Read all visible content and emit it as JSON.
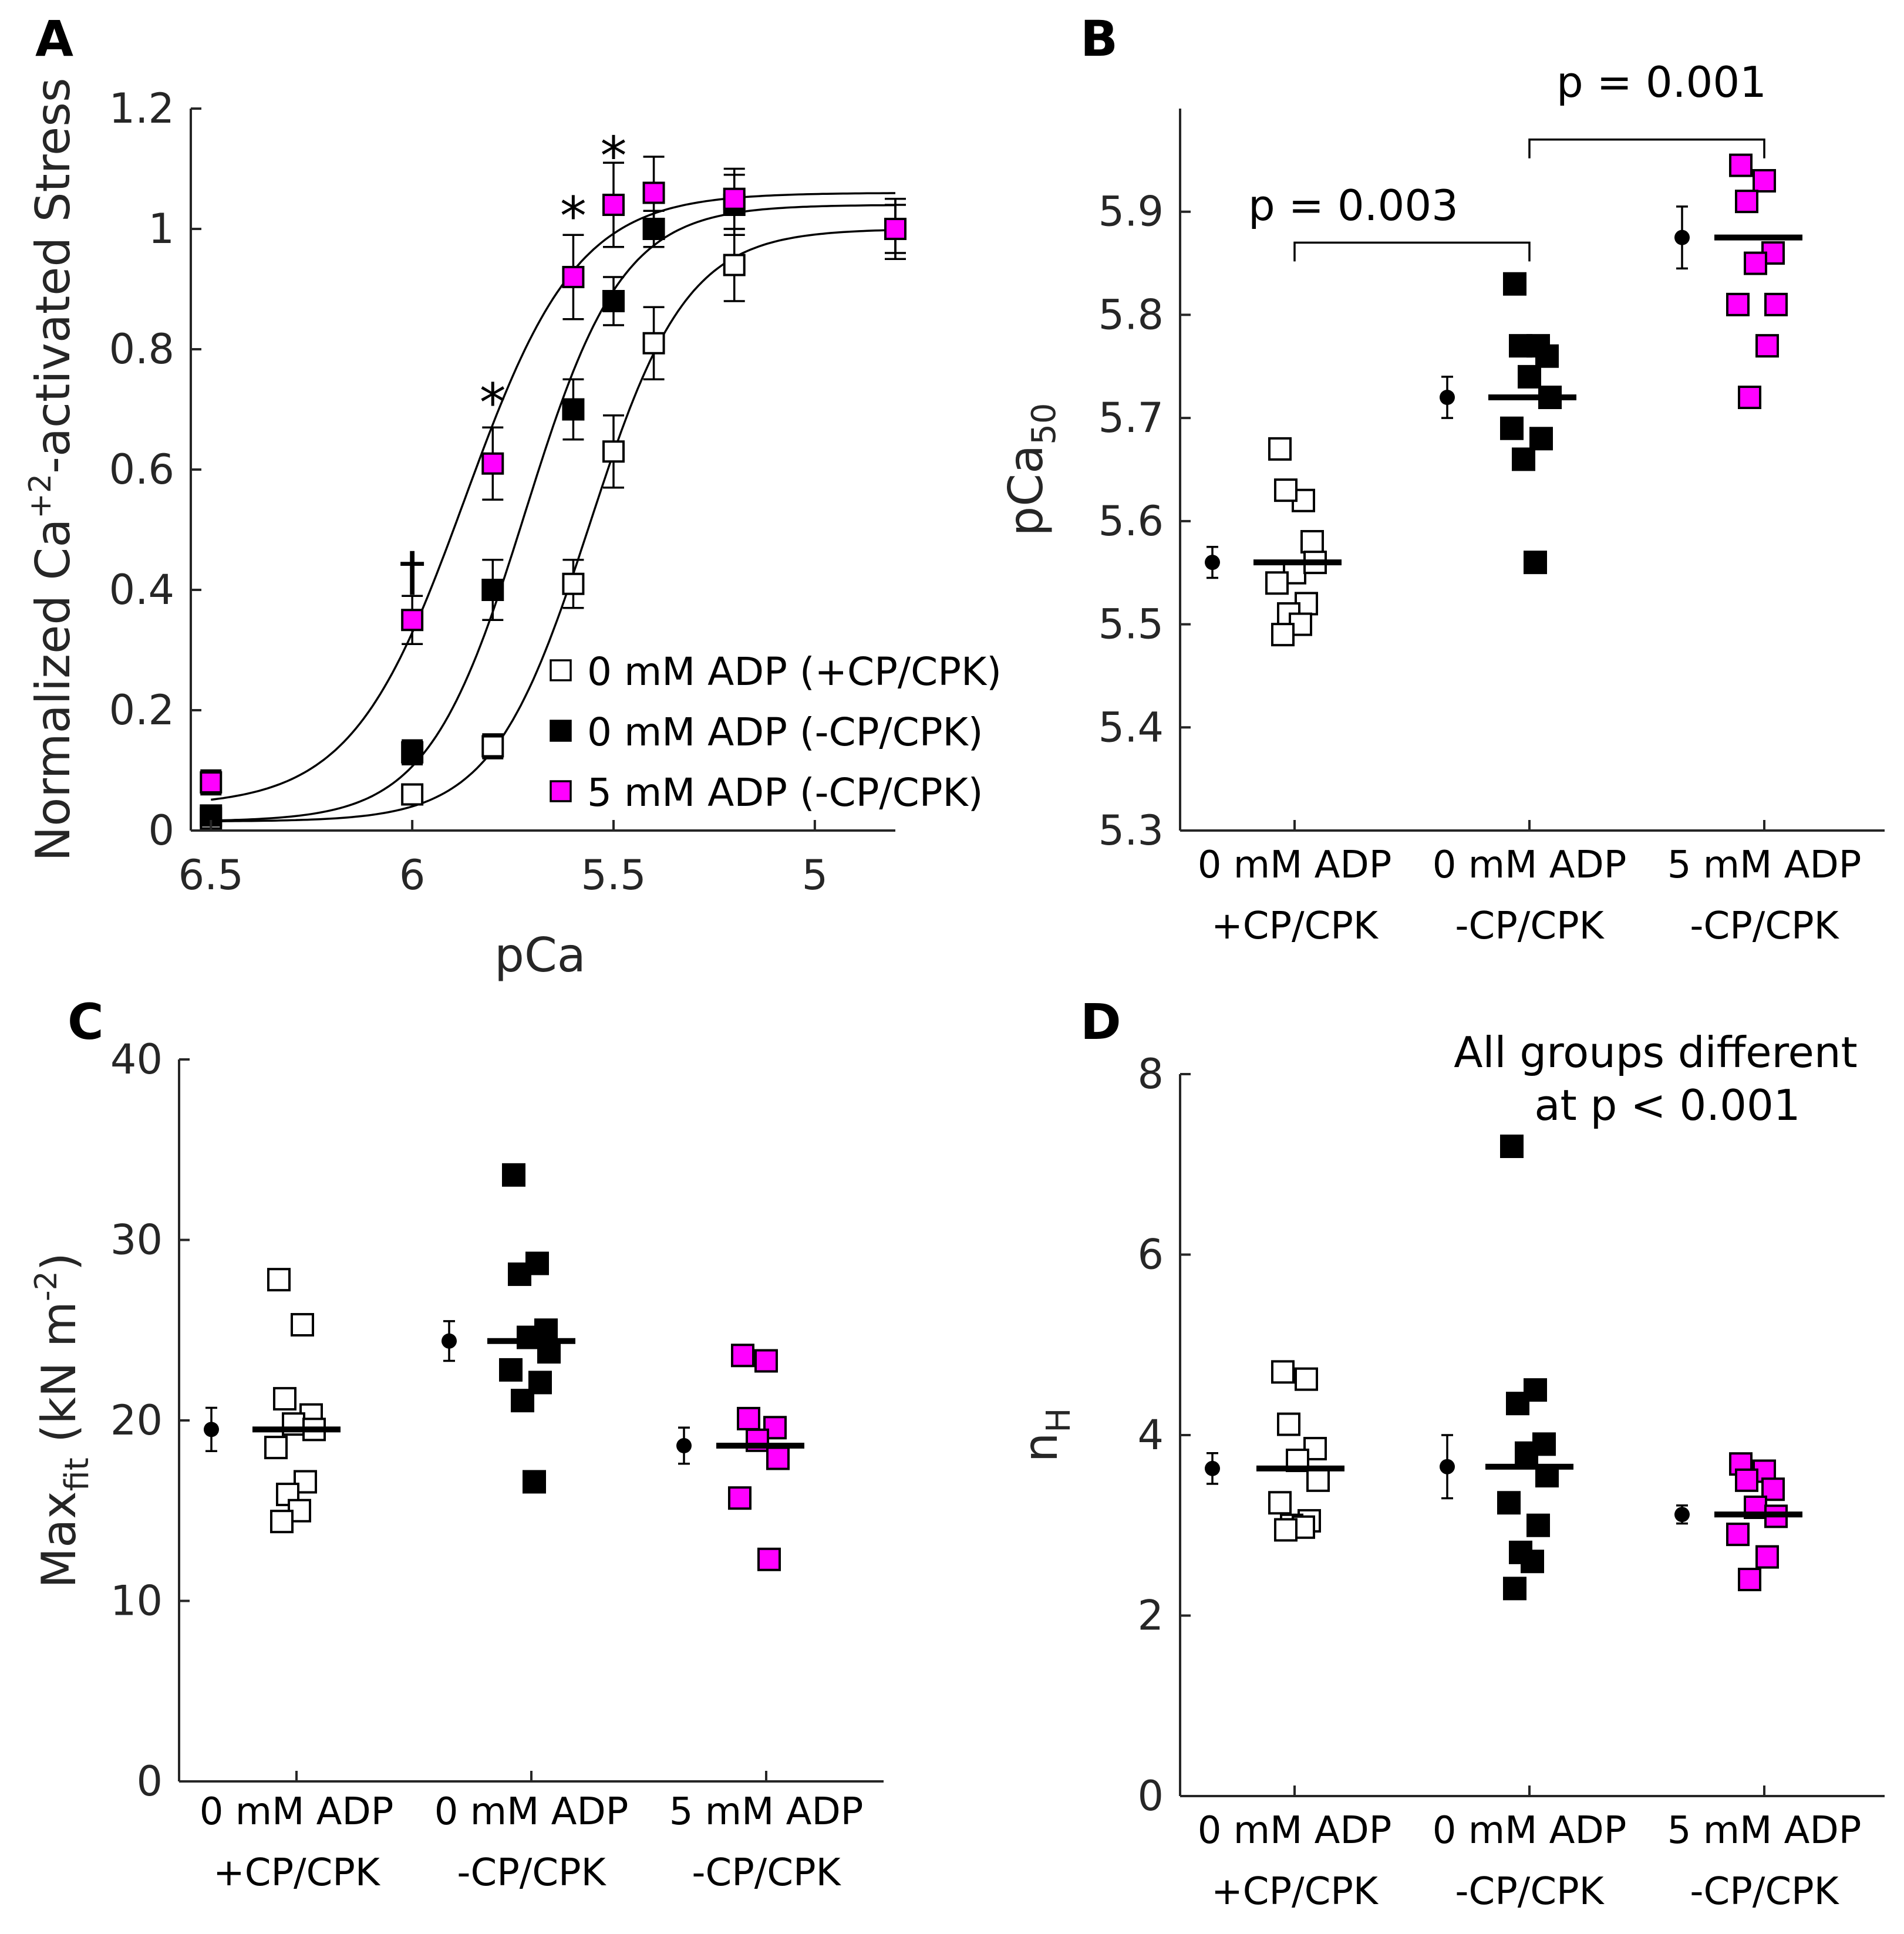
{
  "colors": {
    "open": "#ffffff",
    "black": "#000000",
    "magenta": "#ff00ff",
    "stroke": "#000000"
  },
  "chart_data": [
    {
      "panel": "A",
      "type": "line",
      "xlabel": "pCa",
      "ylabel_main": "Normalized Ca",
      "ylabel_sup": "+2",
      "ylabel_tail": "-activated Stress",
      "x_reversed": true,
      "xlim": [
        6.5,
        4.8
      ],
      "ylim": [
        0,
        1.2
      ],
      "xticks": [
        6.5,
        6,
        5.5,
        5
      ],
      "xtick_labels": [
        "6.5",
        "6",
        "5.5",
        "5"
      ],
      "yticks": [
        0,
        0.2,
        0.4,
        0.6,
        0.8,
        1,
        1.2
      ],
      "ytick_labels": [
        "0",
        "0.2",
        "0.4",
        "0.6",
        "0.8",
        "1",
        "1.2"
      ],
      "legend_position": "lower-right",
      "series": [
        {
          "name": "0 mM ADP (+CP/CPK)",
          "style": "open",
          "fit": {
            "pca50": 5.56,
            "nh": 3.6,
            "max": 1.0,
            "min": 0.015
          },
          "x": [
            6.5,
            6.0,
            5.8,
            5.6,
            5.5,
            5.4,
            5.2,
            4.8
          ],
          "y": [
            0.02,
            0.06,
            0.14,
            0.41,
            0.63,
            0.81,
            0.94,
            1.0
          ],
          "err": [
            0.01,
            0.015,
            0.02,
            0.04,
            0.06,
            0.06,
            0.06,
            0.05
          ]
        },
        {
          "name": "0 mM ADP (-CP/CPK)",
          "style": "black",
          "fit": {
            "pca50": 5.72,
            "nh": 3.6,
            "max": 1.04,
            "min": 0.015
          },
          "x": [
            6.5,
            6.0,
            5.8,
            5.6,
            5.5,
            5.4,
            5.2,
            4.8
          ],
          "y": [
            0.025,
            0.13,
            0.4,
            0.7,
            0.88,
            1.0,
            1.04,
            1.0
          ],
          "err": [
            0.01,
            0.02,
            0.05,
            0.05,
            0.04,
            0.03,
            0.05,
            0.04
          ]
        },
        {
          "name": "5 mM ADP (-CP/CPK)",
          "style": "magenta",
          "fit": {
            "pca50": 5.87,
            "nh": 3.1,
            "max": 1.06,
            "min": 0.04
          },
          "x": [
            6.5,
            6.0,
            5.8,
            5.6,
            5.5,
            5.4,
            5.2,
            4.8
          ],
          "y": [
            0.08,
            0.35,
            0.61,
            0.92,
            1.04,
            1.06,
            1.05,
            1.0
          ],
          "err": [
            0.02,
            0.04,
            0.06,
            0.07,
            0.07,
            0.06,
            0.05,
            0.05
          ]
        }
      ],
      "annotations": [
        {
          "text": "†",
          "x": 6.0,
          "y": 0.43
        },
        {
          "text": "*",
          "x": 5.8,
          "y": 0.71
        },
        {
          "text": "*",
          "x": 5.6,
          "y": 1.02
        },
        {
          "text": "*",
          "x": 5.5,
          "y": 1.12
        }
      ]
    },
    {
      "panel": "B",
      "type": "scatter",
      "ylabel_main": "pCa",
      "ylabel_sub": "50",
      "ylim": [
        5.3,
        6.0
      ],
      "yticks": [
        5.3,
        5.4,
        5.5,
        5.6,
        5.7,
        5.8,
        5.9
      ],
      "ytick_labels": [
        "5.3",
        "5.4",
        "5.5",
        "5.6",
        "5.7",
        "5.8",
        "5.9"
      ],
      "categories": [
        [
          "0 mM ADP",
          "+CP/CPK"
        ],
        [
          "0 mM ADP",
          "-CP/CPK"
        ],
        [
          "5 mM ADP",
          "-CP/CPK"
        ]
      ],
      "groups": [
        {
          "style": "open",
          "mean": 5.56,
          "sem": 0.015,
          "points": [
            5.67,
            5.62,
            5.63,
            5.58,
            5.55,
            5.56,
            5.54,
            5.52,
            5.51,
            5.5,
            5.49
          ]
        },
        {
          "style": "black",
          "mean": 5.72,
          "sem": 0.02,
          "points": [
            5.83,
            5.77,
            5.77,
            5.76,
            5.74,
            5.72,
            5.69,
            5.68,
            5.66,
            5.56
          ]
        },
        {
          "style": "magenta",
          "mean": 5.875,
          "sem": 0.03,
          "points": [
            5.945,
            5.93,
            5.91,
            5.86,
            5.85,
            5.81,
            5.81,
            5.77,
            5.72
          ]
        }
      ],
      "brackets": [
        {
          "from": 0,
          "to": 1,
          "y": 5.87,
          "text": "p = 0.003"
        },
        {
          "from": 1,
          "to": 2,
          "y": 5.97,
          "text": "p = 0.001"
        }
      ]
    },
    {
      "panel": "C",
      "type": "scatter",
      "ylabel_main": "Max",
      "ylabel_sub": "fit",
      "ylabel_tail1": " (kN m",
      "ylabel_sup": "-2",
      "ylabel_tail2": ")",
      "ylim": [
        0,
        40
      ],
      "yticks": [
        0,
        10,
        20,
        30,
        40
      ],
      "ytick_labels": [
        "0",
        "10",
        "20",
        "30",
        "40"
      ],
      "categories": [
        [
          "0 mM ADP",
          "+CP/CPK"
        ],
        [
          "0 mM ADP",
          "-CP/CPK"
        ],
        [
          "5 mM ADP",
          "-CP/CPK"
        ]
      ],
      "groups": [
        {
          "style": "open",
          "mean": 19.5,
          "sem": 1.2,
          "points": [
            27.8,
            25.3,
            21.2,
            20.3,
            19.8,
            19.5,
            18.5,
            16.6,
            15.9,
            15.0,
            14.4
          ]
        },
        {
          "style": "black",
          "mean": 24.4,
          "sem": 1.1,
          "points": [
            33.6,
            28.7,
            28.1,
            25.0,
            24.6,
            23.8,
            22.8,
            22.1,
            21.1,
            16.6
          ]
        },
        {
          "style": "magenta",
          "mean": 18.6,
          "sem": 1.0,
          "points": [
            23.6,
            23.3,
            20.1,
            19.6,
            18.9,
            17.9,
            15.7,
            12.3
          ]
        }
      ]
    },
    {
      "panel": "D",
      "type": "scatter",
      "ylabel_main": "n",
      "ylabel_sub": "H",
      "ylim": [
        0,
        8
      ],
      "yticks": [
        0,
        2,
        4,
        6,
        8
      ],
      "ytick_labels": [
        "0",
        "2",
        "4",
        "6",
        "8"
      ],
      "categories": [
        [
          "0 mM ADP",
          "+CP/CPK"
        ],
        [
          "0 mM ADP",
          "-CP/CPK"
        ],
        [
          "5 mM ADP",
          "-CP/CPK"
        ]
      ],
      "groups": [
        {
          "style": "open",
          "mean": 3.63,
          "sem": 0.17,
          "points": [
            4.7,
            4.62,
            4.12,
            3.85,
            3.72,
            3.5,
            3.25,
            3.05,
            3.0,
            2.98,
            2.95
          ]
        },
        {
          "style": "black",
          "mean": 3.65,
          "sem": 0.35,
          "points": [
            7.2,
            4.5,
            4.35,
            3.9,
            3.8,
            3.55,
            3.25,
            3.0,
            2.7,
            2.6,
            2.3
          ]
        },
        {
          "style": "magenta",
          "mean": 3.12,
          "sem": 0.1,
          "points": [
            3.68,
            3.6,
            3.5,
            3.4,
            3.2,
            3.1,
            2.9,
            2.65,
            2.4
          ]
        }
      ],
      "annotation_lines": [
        "All groups different",
        "at p < 0.001"
      ]
    }
  ]
}
